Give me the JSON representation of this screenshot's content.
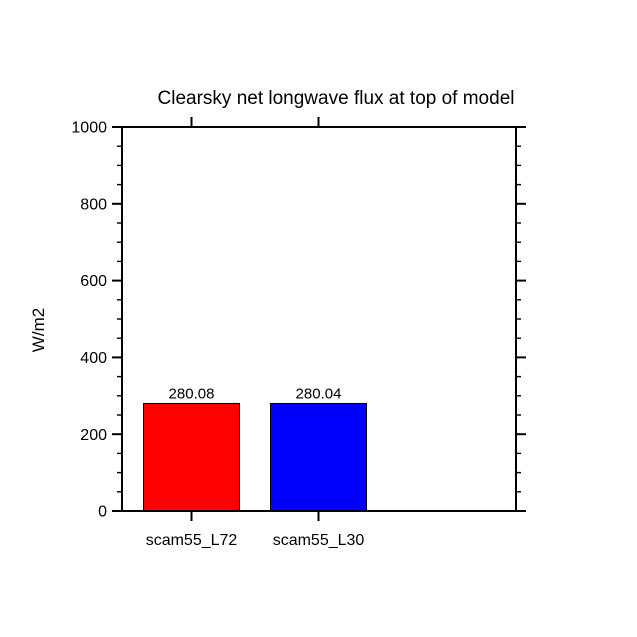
{
  "page": {
    "background": "#ffffff"
  },
  "chart_data": {
    "type": "bar",
    "title": "Clearsky net longwave flux at top of model",
    "xlabel": "",
    "ylabel": "W/m2",
    "categories": [
      "scam55_L72",
      "scam55_L30"
    ],
    "values": [
      280.08,
      280.04
    ],
    "value_labels": [
      "280.08",
      "280.04"
    ],
    "bar_colors": [
      "#ff0000",
      "#0000ff"
    ],
    "bar_outline_color": "#000000",
    "axis_color": "#000000",
    "text_color": "#000000",
    "ylim": [
      0,
      1000
    ],
    "ytick_major_step": 200,
    "ytick_minor_step": 50,
    "ytick_labels": [
      "0",
      "200",
      "400",
      "600",
      "800",
      "1000"
    ],
    "grid": false,
    "legend": null,
    "tick_style": "outward-all-four-sides"
  }
}
